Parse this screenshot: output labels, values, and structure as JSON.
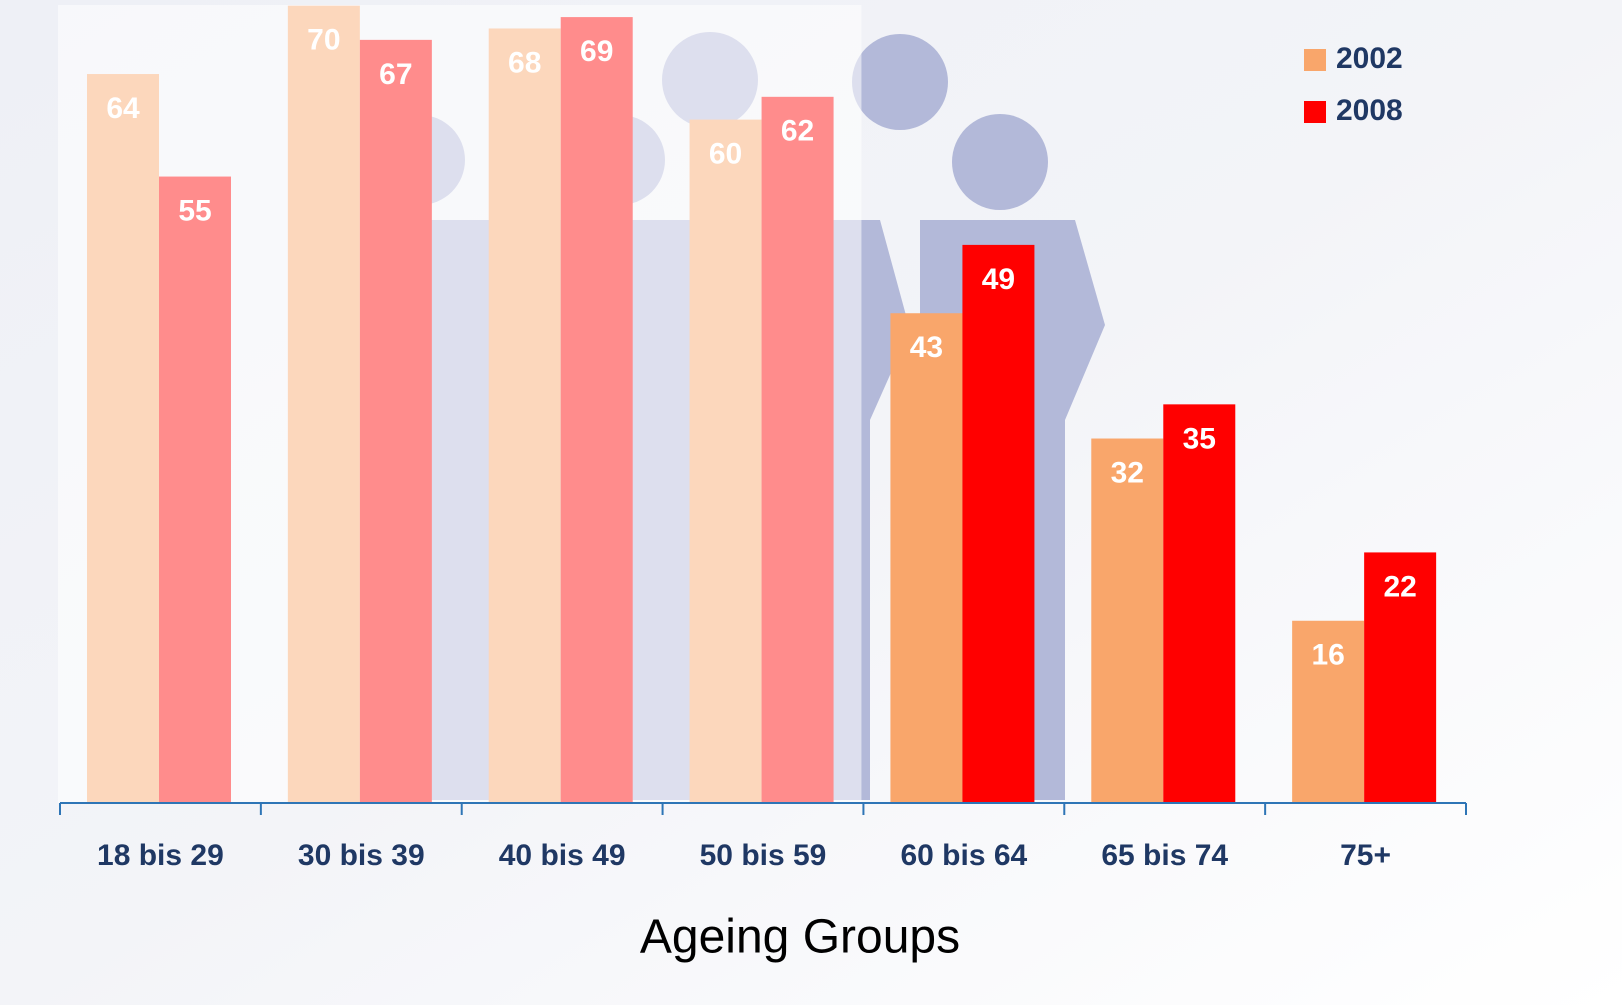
{
  "chart_data": {
    "type": "bar",
    "xlabel": "Ageing Groups",
    "categories": [
      "18 bis 29",
      "30 bis 39",
      "40 bis 49",
      "50 bis 59",
      "60 bis 64",
      "65 bis 74",
      "75+"
    ],
    "series": [
      {
        "name": "2002",
        "color": "#f9a66b",
        "values": [
          64,
          70,
          68,
          60,
          43,
          32,
          16
        ]
      },
      {
        "name": "2008",
        "color": "#ff0000",
        "values": [
          55,
          67,
          69,
          62,
          49,
          35,
          22
        ]
      }
    ],
    "legend": "top-right"
  }
}
